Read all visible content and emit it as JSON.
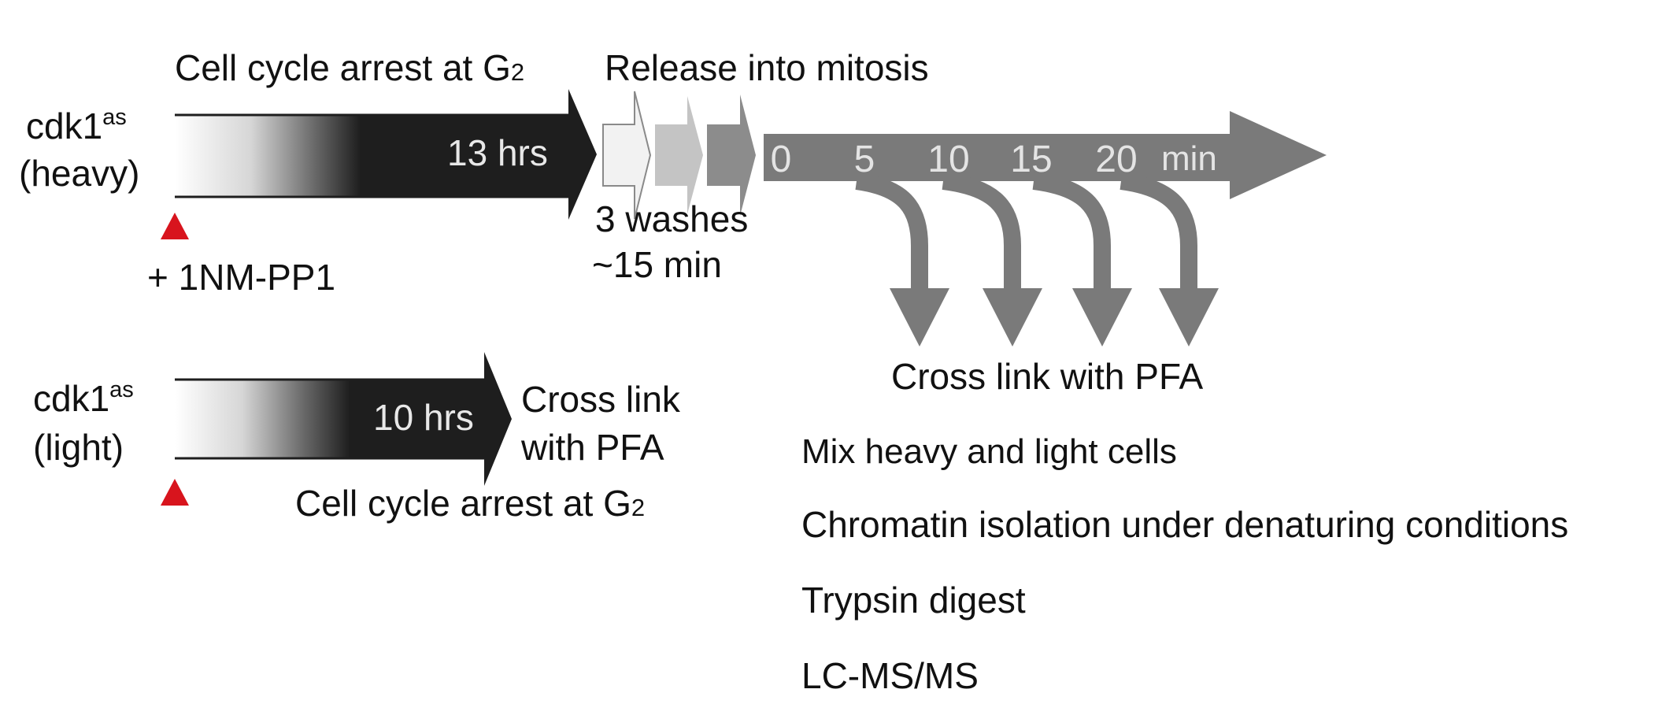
{
  "heavy": {
    "cell_name": "cdk1",
    "cell_sup": "as",
    "cell_label": "(heavy)",
    "arrest_title_prefix": "Cell cycle arrest at G",
    "arrest_title_sub": "2",
    "duration": "13 hrs",
    "drug": "+ 1NM-PP1",
    "release_title": "Release into mitosis",
    "washes_line1": "3 washes",
    "washes_line2": "~15 min"
  },
  "timeline": {
    "ticks": [
      "0",
      "5",
      "10",
      "15",
      "20"
    ],
    "unit": "min",
    "crosslink_label": "Cross link with PFA"
  },
  "light": {
    "cell_name": "cdk1",
    "cell_sup": "as",
    "cell_label": "(light)",
    "duration": "10 hrs",
    "crosslink_line1": "Cross link",
    "crosslink_line2": "with PFA",
    "arrest_title_prefix": "Cell cycle arrest at G",
    "arrest_title_sub": "2"
  },
  "steps": [
    "Mix heavy and light cells",
    "Chromatin isolation under denaturing conditions",
    "Trypsin digest",
    "LC-MS/MS"
  ],
  "colors": {
    "dark_arrow": "#1e1e1e",
    "timeline_gray": "#7a7a7a",
    "marker_red": "#d8141d",
    "tick_text": "#e4e4e4"
  }
}
